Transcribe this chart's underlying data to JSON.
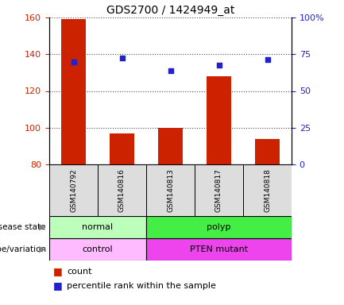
{
  "title": "GDS2700 / 1424949_at",
  "samples": [
    "GSM140792",
    "GSM140816",
    "GSM140813",
    "GSM140817",
    "GSM140818"
  ],
  "bar_values": [
    159,
    97,
    100,
    128,
    94
  ],
  "bar_bottom": 80,
  "scatter_values": [
    136,
    138,
    131,
    134,
    137
  ],
  "ylim_left": [
    80,
    160
  ],
  "ylim_right": [
    0,
    100
  ],
  "yticks_left": [
    80,
    100,
    120,
    140,
    160
  ],
  "yticks_right": [
    0,
    25,
    50,
    75,
    100
  ],
  "yticklabels_right": [
    "0",
    "25",
    "50",
    "75",
    "100%"
  ],
  "bar_color": "#cc2200",
  "scatter_color": "#2222cc",
  "disease_state": [
    {
      "label": "normal",
      "start": 0,
      "end": 2,
      "color": "#bbffbb"
    },
    {
      "label": "polyp",
      "start": 2,
      "end": 5,
      "color": "#44ee44"
    }
  ],
  "genotype": [
    {
      "label": "control",
      "start": 0,
      "end": 2,
      "color": "#ffbbff"
    },
    {
      "label": "PTEN mutant",
      "start": 2,
      "end": 5,
      "color": "#ee44ee"
    }
  ],
  "sample_bg": "#dddddd",
  "legend_count_color": "#cc2200",
  "legend_scatter_color": "#2222cc",
  "legend_count_label": "count",
  "legend_scatter_label": "percentile rank within the sample",
  "tick_color_left": "#cc2200",
  "tick_color_right": "#2222cc"
}
